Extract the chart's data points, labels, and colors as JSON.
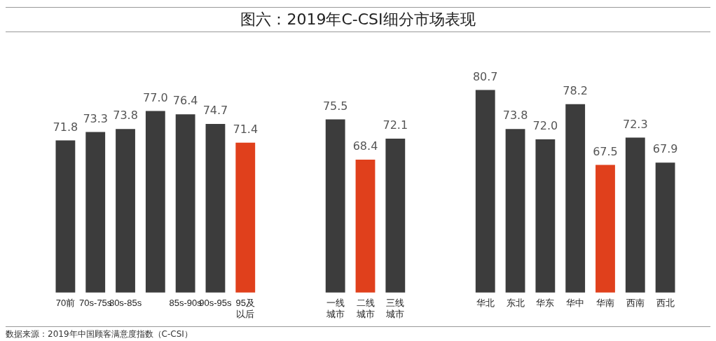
{
  "chart_data": {
    "type": "bar",
    "title": "图六：2019年C-CSI细分市场表现",
    "categories": [
      "70前",
      "70s-75s",
      "80s-85s",
      null,
      "85s-90s",
      "90s-95s",
      "95及以后",
      null,
      null,
      "一线城市",
      "二线城市",
      "三线城市",
      null,
      null,
      "华北",
      "东北",
      "华东",
      "华中",
      "华南",
      "西南",
      "西北"
    ],
    "values": [
      71.8,
      73.3,
      73.8,
      77.0,
      76.4,
      74.7,
      71.4,
      null,
      null,
      75.5,
      68.4,
      72.1,
      null,
      null,
      80.7,
      73.8,
      72.0,
      78.2,
      67.5,
      72.3,
      67.9
    ],
    "value_labels": [
      "71.8",
      "73.3",
      "73.8",
      "77.0",
      "76.4",
      "74.7",
      "71.4",
      null,
      null,
      "75.5",
      "68.4",
      "72.1",
      null,
      null,
      "80.7",
      "73.8",
      "72.0",
      "78.2",
      "67.5",
      "72.3",
      "67.9"
    ],
    "colors": [
      "#3c3c3c",
      "#3c3c3c",
      "#3c3c3c",
      "#3c3c3c",
      "#3c3c3c",
      "#3c3c3c",
      "#e0401c",
      null,
      null,
      "#3c3c3c",
      "#e0401c",
      "#3c3c3c",
      null,
      null,
      "#3c3c3c",
      "#3c3c3c",
      "#3c3c3c",
      "#3c3c3c",
      "#e0401c",
      "#3c3c3c",
      "#3c3c3c"
    ],
    "tick_labels": "x",
    "grid": false,
    "legend": false,
    "annotations": [
      "数据来源：2019年中国顾客满意度指数（C-CSI）"
    ]
  }
}
